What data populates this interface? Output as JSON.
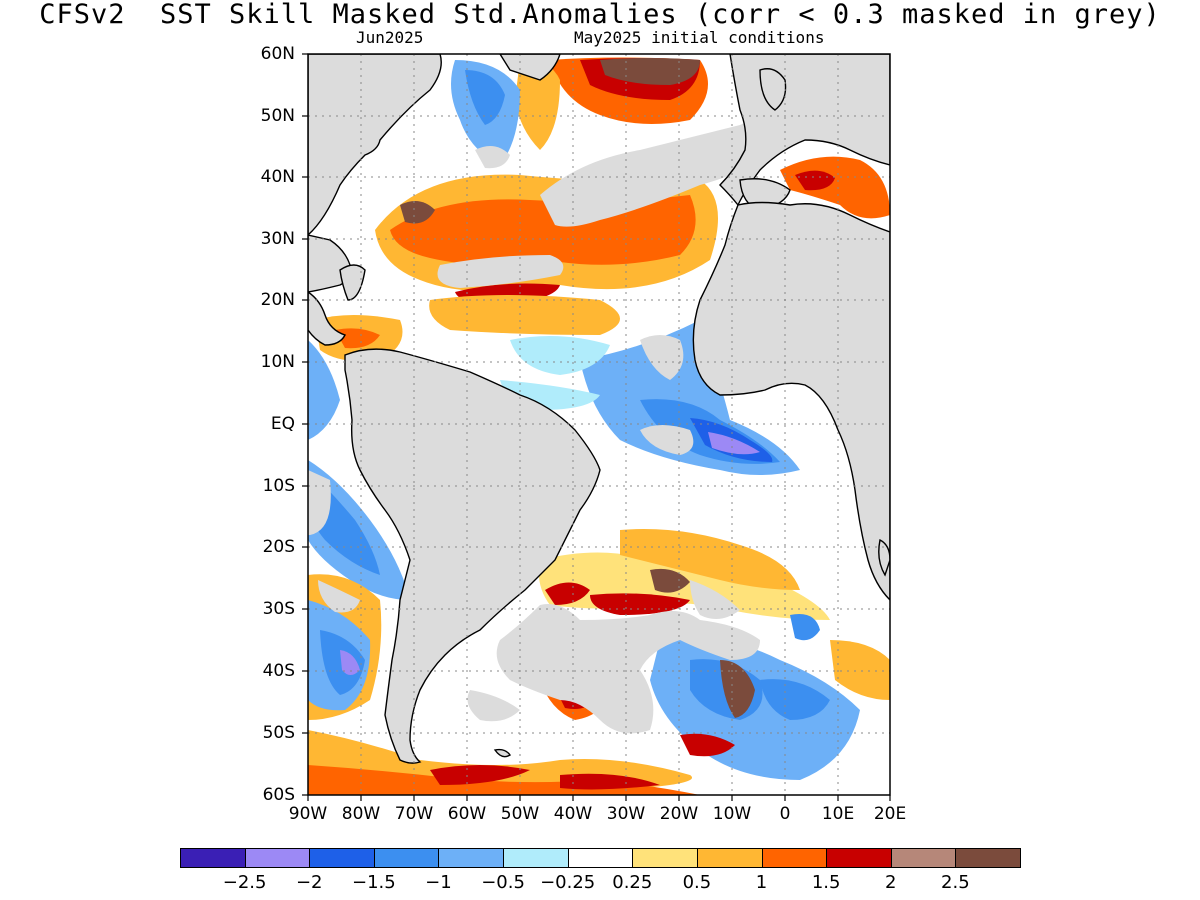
{
  "title": "CFSv2  SST Skill Masked Std.Anomalies (corr < 0.3 masked in grey)",
  "subtitle_left": "Jun2025",
  "subtitle_right": "May2025 initial conditions",
  "mask_color": "#dcdcdc",
  "lat_labels": [
    "60N",
    "50N",
    "40N",
    "30N",
    "20N",
    "10N",
    "EQ",
    "10S",
    "20S",
    "30S",
    "40S",
    "50S",
    "60S"
  ],
  "lon_labels": [
    "90W",
    "80W",
    "70W",
    "60W",
    "50W",
    "40W",
    "30W",
    "20W",
    "10W",
    "0",
    "10E",
    "20E"
  ],
  "colorbar": {
    "colors": [
      "#3a1fb5",
      "#9c89f5",
      "#1e60e8",
      "#3c8ff0",
      "#6db0f7",
      "#b0ecfb",
      "#ffffff",
      "#ffe27a",
      "#ffb733",
      "#ff6400",
      "#c80000",
      "#b68779",
      "#7b4b3c"
    ],
    "labels": [
      "-2.5",
      "-2",
      "-1.5",
      "-1",
      "-0.5",
      "-0.25",
      "0.25",
      "0.5",
      "1",
      "1.5",
      "2",
      "2.5"
    ]
  }
}
